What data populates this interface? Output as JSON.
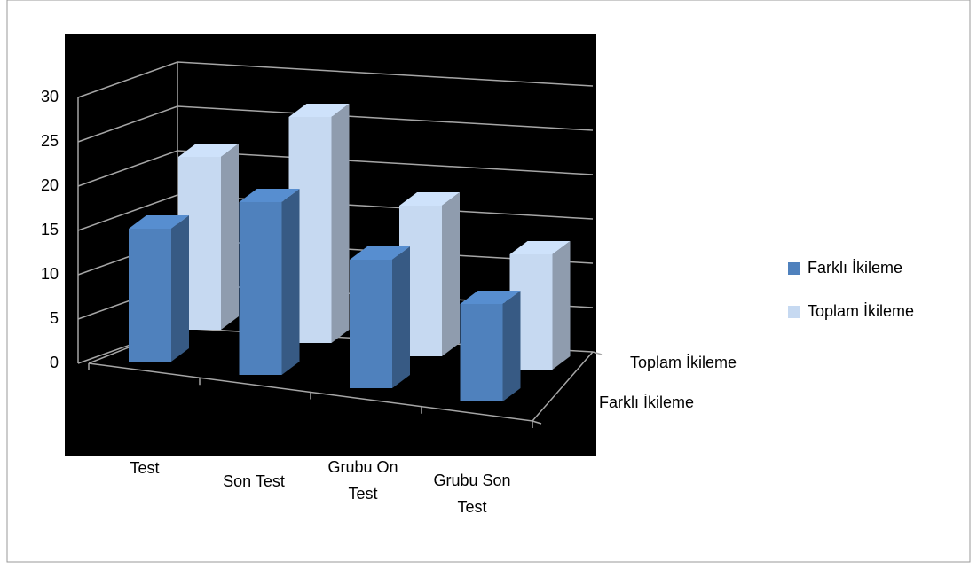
{
  "chart_data": {
    "type": "bar3d",
    "categories": [
      "Test",
      "Son Test",
      "Grubu On Test",
      "Grubu Son Test"
    ],
    "series": [
      {
        "name": "Farklı İkileme",
        "color": "#4f81bd",
        "values": [
          15,
          19.5,
          14.5,
          11
        ]
      },
      {
        "name": "Toplam İkileme",
        "color": "#c6d9f1",
        "values": [
          19.5,
          25.5,
          17,
          13
        ]
      }
    ],
    "ylim": [
      0,
      30
    ],
    "yticks": [
      0,
      5,
      10,
      15,
      20,
      25,
      30
    ],
    "grid": true,
    "legend": "right"
  }
}
